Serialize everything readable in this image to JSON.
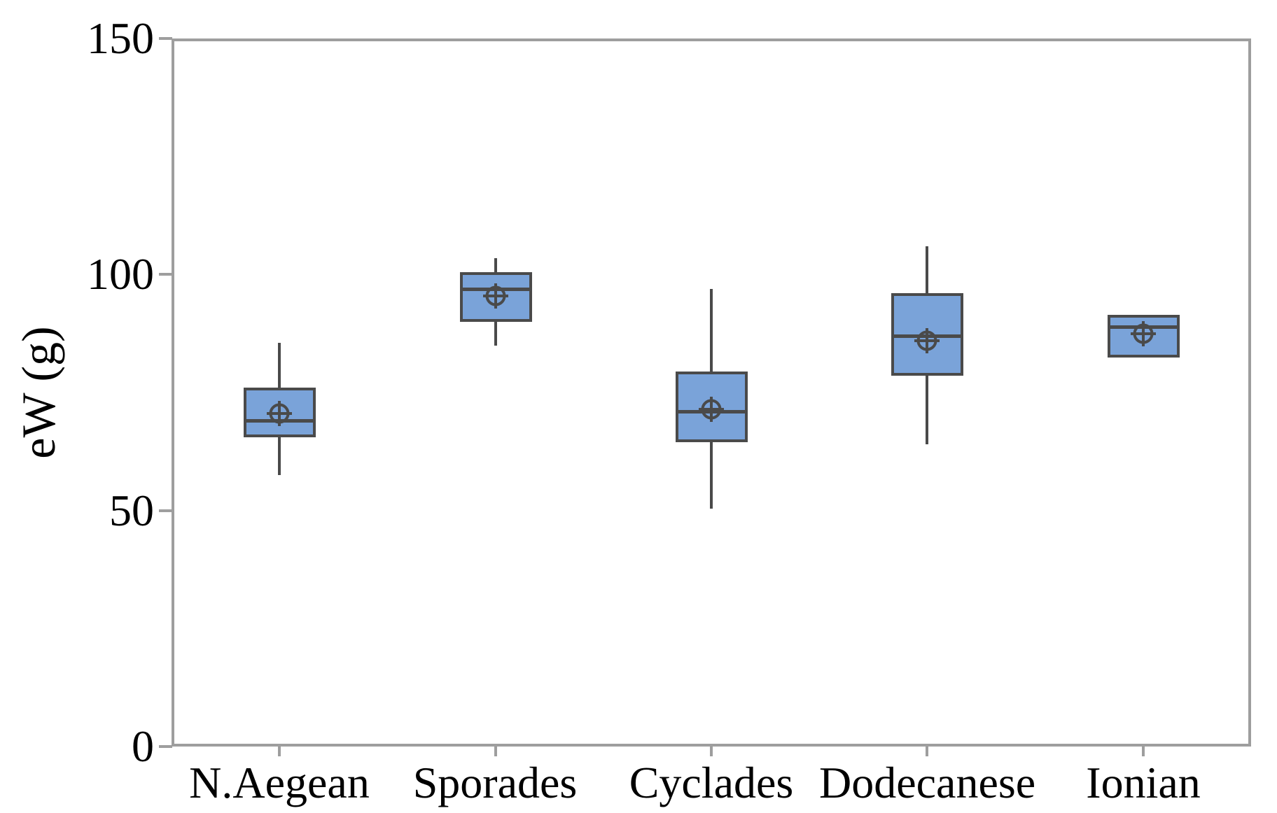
{
  "chart_data": {
    "type": "boxplot",
    "title": "",
    "xlabel": "",
    "ylabel": "eW (g)",
    "ylim": [
      0,
      150
    ],
    "yticks": [
      0,
      50,
      100,
      150
    ],
    "grid": false,
    "legend": false,
    "frame": true,
    "categories": [
      "N.Aegean",
      "Sporades",
      "Cyclades",
      "Dodecanese",
      "Ionian"
    ],
    "series": [
      {
        "category": "N.Aegean",
        "whisker_low": 57.5,
        "q1": 65.5,
        "median": 69,
        "mean": 70.5,
        "q3": 76,
        "whisker_high": 85.5
      },
      {
        "category": "Sporades",
        "whisker_low": 85,
        "q1": 90,
        "median": 97,
        "mean": 95.5,
        "q3": 100.5,
        "whisker_high": 103.5
      },
      {
        "category": "Cyclades",
        "whisker_low": 50.5,
        "q1": 64.5,
        "median": 71,
        "mean": 71.5,
        "q3": 79.5,
        "whisker_high": 97
      },
      {
        "category": "Dodecanese",
        "whisker_low": 64,
        "q1": 78.5,
        "median": 87,
        "mean": 86,
        "q3": 96,
        "whisker_high": 106
      },
      {
        "category": "Ionian",
        "whisker_low": 82.5,
        "q1": 82.5,
        "median": 89,
        "mean": 87.5,
        "q3": 91.5,
        "whisker_high": 91.5
      }
    ],
    "colors": {
      "box_fill": "#7aa3d9",
      "box_border": "#4a4a4a",
      "frame": "#9e9e9e",
      "text": "#000000",
      "background": "#ffffff"
    }
  }
}
